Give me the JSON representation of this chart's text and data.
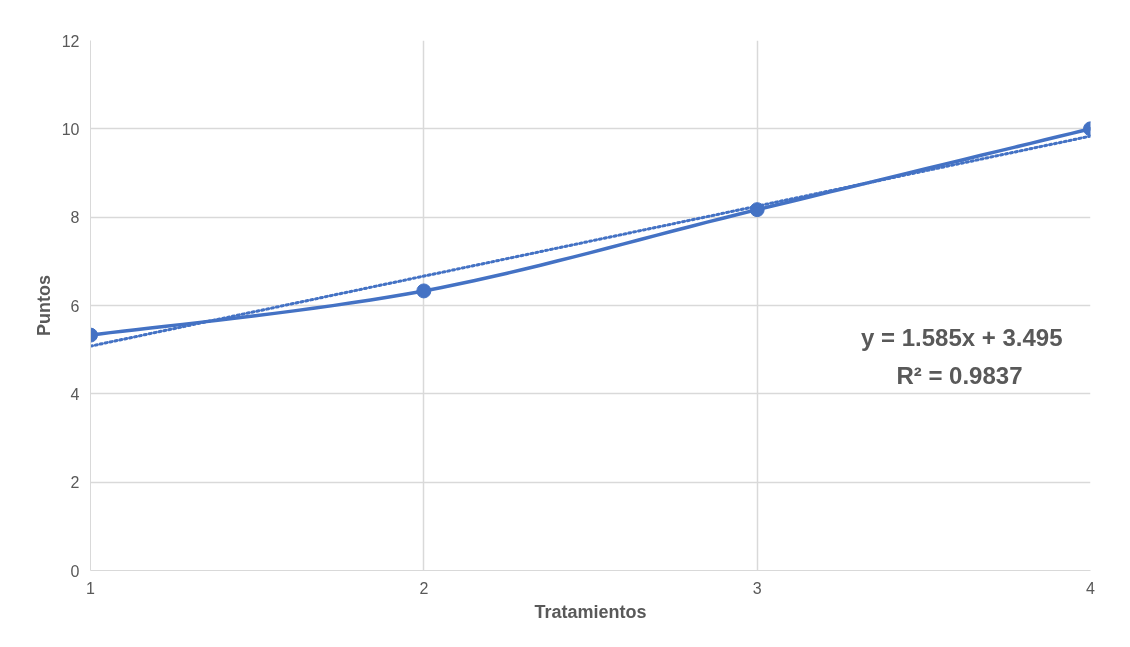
{
  "chart_data": {
    "type": "line",
    "xlabel": "Tratamientos",
    "ylabel": "Puntos",
    "x": [
      1,
      2,
      3,
      4
    ],
    "series": [
      {
        "color": "#4472c4",
        "values": [
          5.33,
          6.33,
          8.17,
          10
        ]
      },
      {
        "type": "line",
        "color": "#4472c4",
        "x": [
          1,
          4
        ],
        "values": [
          5.08,
          9.835
        ],
        "line_style": "dotted",
        "marker": "none"
      }
    ],
    "xlim": [
      1,
      4
    ],
    "xticks": [
      1,
      2,
      3,
      4
    ],
    "ylim": [
      0,
      12
    ],
    "yticks": [
      0,
      2,
      4,
      6,
      8,
      10,
      12
    ],
    "grid": true,
    "marker": "circle",
    "line_style": "solid",
    "annotations": [
      "y = 1.585x + 3.495",
      "R² = 0.9837"
    ]
  }
}
